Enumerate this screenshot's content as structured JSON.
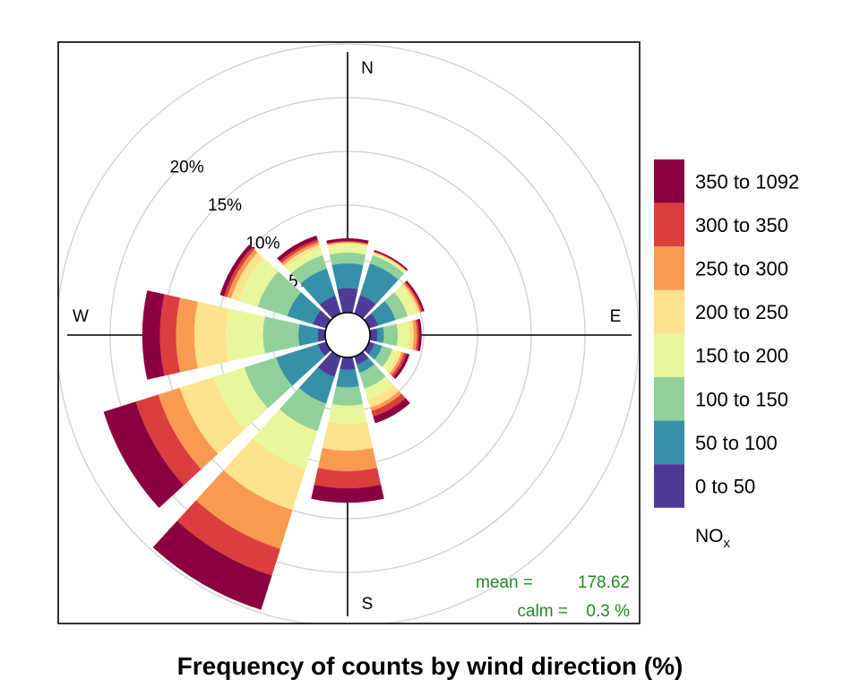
{
  "chart_data": {
    "type": "polar-stacked-bar (wind rose)",
    "title": "Frequency of counts by wind direction (%)",
    "compass_labels": [
      "N",
      "E",
      "S",
      "W"
    ],
    "radial_axis": {
      "unit": "%",
      "ticks": [
        5,
        10,
        15,
        20
      ],
      "tick_labels": [
        "5%",
        "10%",
        "15%",
        "20%"
      ],
      "max": 27
    },
    "colorkey": {
      "title": "NO",
      "title_sub": "x",
      "bins": [
        {
          "label": "0 to 50",
          "color": "#4E3B96"
        },
        {
          "label": "50 to 100",
          "color": "#3590A8"
        },
        {
          "label": "100 to 150",
          "color": "#91D09A"
        },
        {
          "label": "150 to 200",
          "color": "#EAF69D"
        },
        {
          "label": "200 to 250",
          "color": "#FEE28C"
        },
        {
          "label": "250 to 300",
          "color": "#F99A51"
        },
        {
          "label": "300 to 350",
          "color": "#DA3E3F"
        },
        {
          "label": "350 to 1092",
          "color": "#8B0040"
        }
      ]
    },
    "directions_deg": [
      0,
      30,
      60,
      90,
      120,
      150,
      180,
      210,
      240,
      270,
      300,
      330
    ],
    "cumulative_percent": [
      [
        2.3,
        4.6,
        5.6,
        6.5,
        6.5,
        6.6,
        6.7,
        6.9
      ],
      [
        1.8,
        4.9,
        5.7,
        5.9,
        6.0,
        6.05,
        6.1,
        6.2
      ],
      [
        0.9,
        2.6,
        3.8,
        4.7,
        4.95,
        5.1,
        5.25,
        5.4
      ],
      [
        0.7,
        1.3,
        2.6,
        3.7,
        4.1,
        4.4,
        4.6,
        4.8
      ],
      [
        0.55,
        1.3,
        2.3,
        2.9,
        3.2,
        3.45,
        3.7,
        3.95
      ],
      [
        0.8,
        1.6,
        3.15,
        4.25,
        5.0,
        5.35,
        5.9,
        6.5
      ],
      [
        1.15,
        2.8,
        4.5,
        6.2,
        8.7,
        10.6,
        12.2,
        13.5
      ],
      [
        2.0,
        4.6,
        7.3,
        11.0,
        15.0,
        18.8,
        21.4,
        24.7
      ],
      [
        0.8,
        4.9,
        8.0,
        11.0,
        14.3,
        16.4,
        18.6,
        21.7
      ],
      [
        0.7,
        2.5,
        5.8,
        9.3,
        12.2,
        13.9,
        15.4,
        17.0
      ],
      [
        1.3,
        3.8,
        6.7,
        8.6,
        9.3,
        9.7,
        10.0,
        10.35
      ],
      [
        1.75,
        4.4,
        5.7,
        6.4,
        6.75,
        7.0,
        7.25,
        7.6
      ]
    ],
    "stats": {
      "mean_label": "mean =",
      "mean_value": "178.62",
      "calm_label": "calm =",
      "calm_value": "0.3 %"
    }
  }
}
